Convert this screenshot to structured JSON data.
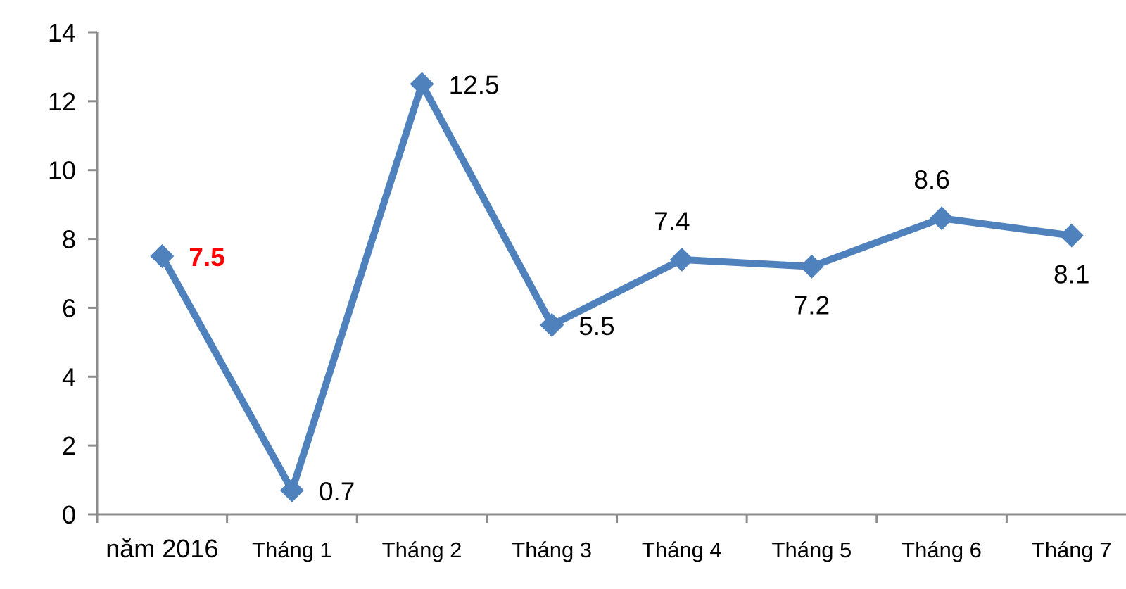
{
  "chart_data": {
    "type": "line",
    "title": "",
    "xlabel": "",
    "ylabel": "",
    "categories": [
      "năm 2016",
      "Tháng 1",
      "Tháng 2",
      "Tháng 3",
      "Tháng 4",
      "Tháng 5",
      "Tháng 6",
      "Tháng 7"
    ],
    "values": [
      7.5,
      0.7,
      12.5,
      5.5,
      7.4,
      7.2,
      8.6,
      8.1
    ],
    "point_labels": [
      {
        "text": "7.5",
        "position": "right",
        "color": "#FF0000",
        "bold": true
      },
      {
        "text": "0.7",
        "position": "right",
        "color": "#000000",
        "bold": false
      },
      {
        "text": "12.5",
        "position": "right",
        "color": "#000000",
        "bold": false
      },
      {
        "text": "5.5",
        "position": "right",
        "color": "#000000",
        "bold": false
      },
      {
        "text": "7.4",
        "position": "above",
        "color": "#000000",
        "bold": false
      },
      {
        "text": "7.2",
        "position": "below",
        "color": "#000000",
        "bold": false
      },
      {
        "text": "8.6",
        "position": "above",
        "color": "#000000",
        "bold": false
      },
      {
        "text": "8.1",
        "position": "below",
        "color": "#000000",
        "bold": false
      }
    ],
    "ylim": [
      0,
      14
    ],
    "yticks": [
      0,
      2,
      4,
      6,
      8,
      10,
      12,
      14
    ],
    "grid": false,
    "legend": false,
    "marker": "diamond",
    "line_color": "#4F81BD",
    "axis_color": "#8C8C8C",
    "tick_label_color": "#000000",
    "background": "#FFFFFF"
  }
}
